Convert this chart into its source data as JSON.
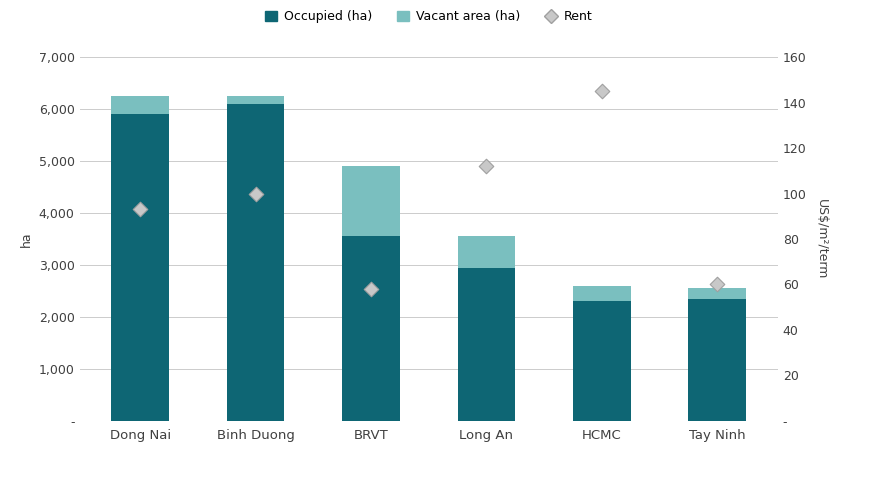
{
  "categories": [
    "Dong Nai",
    "Binh Duong",
    "BRVT",
    "Long An",
    "HCMC",
    "Tay Ninh"
  ],
  "occupied": [
    5900,
    6100,
    3550,
    2950,
    2300,
    2350
  ],
  "vacant": [
    360,
    160,
    1360,
    600,
    290,
    210
  ],
  "rent": [
    93,
    100,
    58,
    112,
    145,
    60
  ],
  "occupied_color": "#0e6674",
  "vacant_color": "#7abfbf",
  "rent_color": "#c8c8c8",
  "rent_edge_color": "#a0a0a0",
  "ylabel_left": "ha",
  "ylabel_right": "US$/m²/term",
  "ylim_left": [
    0,
    7000
  ],
  "ylim_right": [
    0,
    160
  ],
  "yticks_left": [
    0,
    1000,
    2000,
    3000,
    4000,
    5000,
    6000,
    7000
  ],
  "ytick_labels_left": [
    "-",
    "1,000",
    "2,000",
    "3,000",
    "4,000",
    "5,000",
    "6,000",
    "7,000"
  ],
  "yticks_right": [
    0,
    20,
    40,
    60,
    80,
    100,
    120,
    140,
    160
  ],
  "ytick_labels_right": [
    "-",
    "20",
    "40",
    "60",
    "80",
    "100",
    "120",
    "140",
    "160"
  ],
  "legend_labels": [
    "Occupied (ha)",
    "Vacant area (ha)",
    "Rent"
  ],
  "background_color": "#ffffff",
  "grid_color": "#cccccc",
  "bar_width": 0.5,
  "font_color": "#404040",
  "font_size_ticks": 9,
  "font_size_legend": 9,
  "font_size_ylabel": 9
}
